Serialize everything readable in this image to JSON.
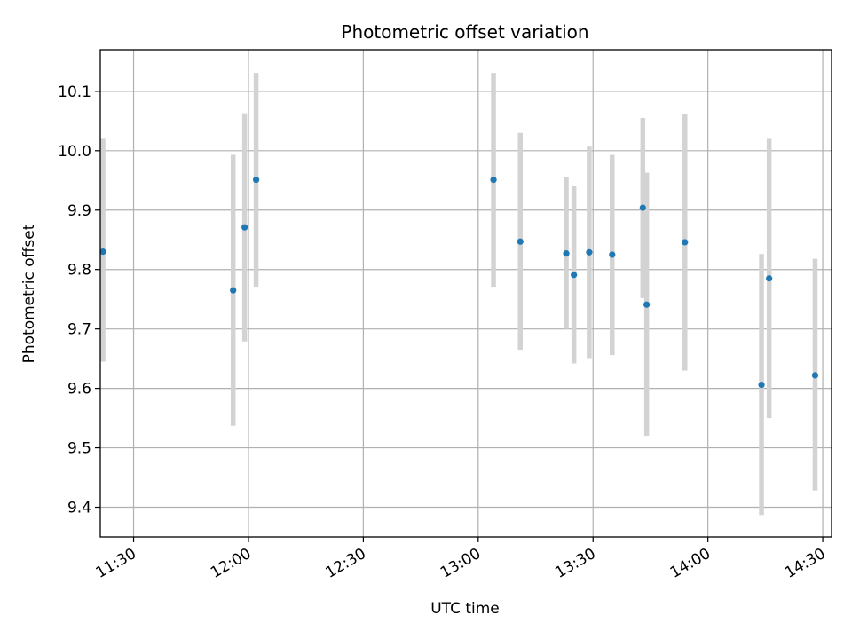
{
  "chart_data": {
    "type": "scatter",
    "title": "Photometric offset variation",
    "xlabel": "UTC time",
    "ylabel": "Photometric offset",
    "x_ticks": [
      "11:30",
      "12:00",
      "12:30",
      "13:00",
      "13:30",
      "14:00",
      "14:30"
    ],
    "y_ticks": [
      "9.4",
      "9.5",
      "9.6",
      "9.7",
      "9.8",
      "9.9",
      "10.0",
      "10.1"
    ],
    "xlim": [
      "11:21.3",
      "14:32.3"
    ],
    "ylim": [
      9.35,
      10.17
    ],
    "grid": true,
    "colors": {
      "point": "#1f77b4",
      "errorbar": "#d3d3d3",
      "grid": "#b0b0b0"
    },
    "points": [
      {
        "x": "11:22",
        "y": 9.83,
        "ylow": 9.645,
        "yhigh": 10.02
      },
      {
        "x": "11:56",
        "y": 9.765,
        "ylow": 9.537,
        "yhigh": 9.993
      },
      {
        "x": "11:59",
        "y": 9.871,
        "ylow": 9.679,
        "yhigh": 10.063
      },
      {
        "x": "12:02",
        "y": 9.951,
        "ylow": 9.771,
        "yhigh": 10.131
      },
      {
        "x": "13:04",
        "y": 9.951,
        "ylow": 9.771,
        "yhigh": 10.131
      },
      {
        "x": "13:11",
        "y": 9.847,
        "ylow": 9.665,
        "yhigh": 10.03
      },
      {
        "x": "13:23",
        "y": 9.827,
        "ylow": 9.7,
        "yhigh": 9.955
      },
      {
        "x": "13:25",
        "y": 9.791,
        "ylow": 9.642,
        "yhigh": 9.94
      },
      {
        "x": "13:29",
        "y": 9.829,
        "ylow": 9.651,
        "yhigh": 10.007
      },
      {
        "x": "13:35",
        "y": 9.825,
        "ylow": 9.656,
        "yhigh": 9.993
      },
      {
        "x": "13:43",
        "y": 9.904,
        "ylow": 9.752,
        "yhigh": 10.055
      },
      {
        "x": "13:44",
        "y": 9.741,
        "ylow": 9.52,
        "yhigh": 9.963
      },
      {
        "x": "13:54",
        "y": 9.846,
        "ylow": 9.63,
        "yhigh": 10.062
      },
      {
        "x": "14:14",
        "y": 9.606,
        "ylow": 9.387,
        "yhigh": 9.826
      },
      {
        "x": "14:16",
        "y": 9.785,
        "ylow": 9.55,
        "yhigh": 10.02
      },
      {
        "x": "14:28",
        "y": 9.622,
        "ylow": 9.428,
        "yhigh": 9.818
      }
    ]
  }
}
